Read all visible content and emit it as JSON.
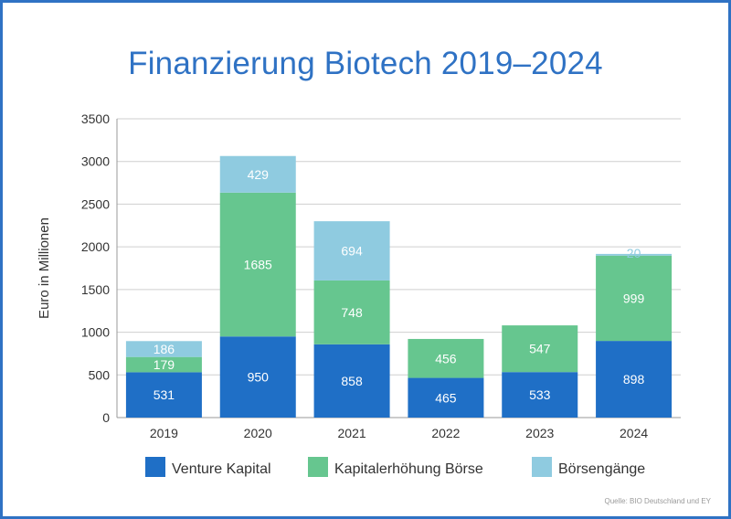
{
  "chart_data": {
    "type": "bar",
    "stacked": true,
    "title": "Finanzierung Biotech 2019–2024",
    "ylabel": "Euro in Millionen",
    "xlabel": "",
    "ylim": [
      0,
      3500
    ],
    "yticks": [
      0,
      500,
      1000,
      1500,
      2000,
      2500,
      3000,
      3500
    ],
    "grid": true,
    "legend_position": "bottom",
    "categories": [
      "2019",
      "2020",
      "2021",
      "2022",
      "2023",
      "2024"
    ],
    "series": [
      {
        "name": "Venture Kapital",
        "color": "#1f6fc6",
        "values": [
          531,
          950,
          858,
          465,
          533,
          898
        ]
      },
      {
        "name": "Kapitalerhöhung Börse",
        "color": "#66c68f",
        "values": [
          179,
          1685,
          748,
          456,
          547,
          999
        ]
      },
      {
        "name": "Börsengänge",
        "color": "#8fcbe0",
        "values": [
          186,
          429,
          694,
          null,
          null,
          20
        ]
      }
    ],
    "source": "Quelle: BIO Deutschland und EY"
  }
}
